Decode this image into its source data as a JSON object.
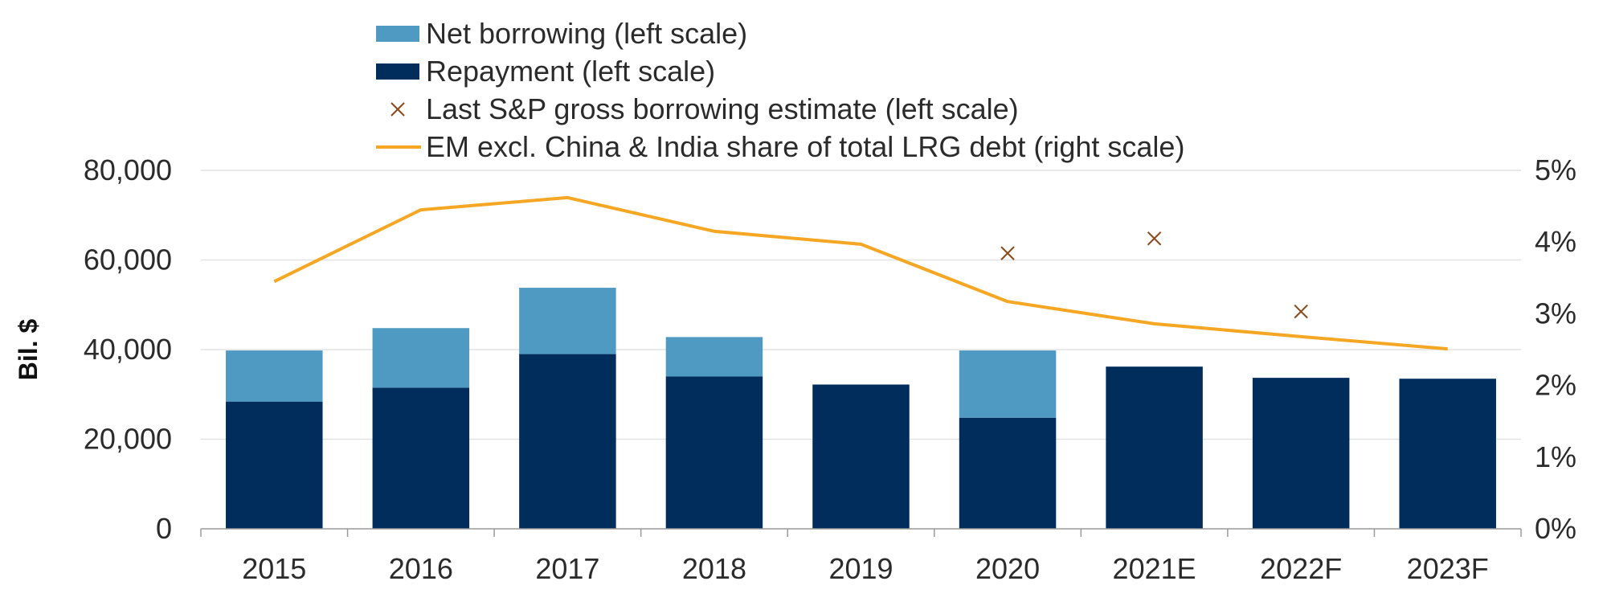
{
  "chart_data": {
    "type": "bar",
    "stacked": true,
    "categories": [
      "2015",
      "2016",
      "2017",
      "2018",
      "2019",
      "2020",
      "2021E",
      "2022F",
      "2023F"
    ],
    "series": [
      {
        "name": "Repayment (left scale)",
        "kind": "bar",
        "axis": "left",
        "color": "#002d5c",
        "values": [
          28400,
          31500,
          39000,
          34000,
          32200,
          24800,
          36200,
          33700,
          33500
        ]
      },
      {
        "name": "Net borrowing (left scale)",
        "kind": "bar",
        "axis": "left",
        "color": "#4f9ac3",
        "values": [
          11400,
          13300,
          14800,
          8800,
          0,
          15000,
          0,
          0,
          0
        ]
      },
      {
        "name": "Last S&P gross borrowing estimate (left scale)",
        "kind": "marker",
        "marker": "x",
        "axis": "left",
        "color": "#8b4a1c",
        "values": [
          null,
          null,
          null,
          null,
          null,
          61500,
          64800,
          48500,
          null
        ]
      },
      {
        "name": "EM excl. China & India share of total LRG debt (right scale)",
        "kind": "line",
        "axis": "right",
        "color": "#f5a623",
        "values": [
          3.45,
          4.45,
          4.62,
          4.15,
          3.97,
          3.17,
          2.86,
          2.68,
          2.51
        ]
      }
    ],
    "legend_order": [
      1,
      0,
      2,
      3
    ],
    "ylabel": "Bil. $",
    "y_left": {
      "min": 0,
      "max": 80000,
      "ticks": [
        0,
        20000,
        40000,
        60000,
        80000
      ],
      "tick_labels": [
        "0",
        "20,000",
        "40,000",
        "60,000",
        "80,000"
      ]
    },
    "y_right": {
      "min": 0,
      "max": 5,
      "ticks": [
        0,
        1,
        2,
        3,
        4,
        5
      ],
      "tick_labels": [
        "0%",
        "1%",
        "2%",
        "3%",
        "4%",
        "5%"
      ]
    },
    "grid": true,
    "legend_position": "top-center"
  }
}
